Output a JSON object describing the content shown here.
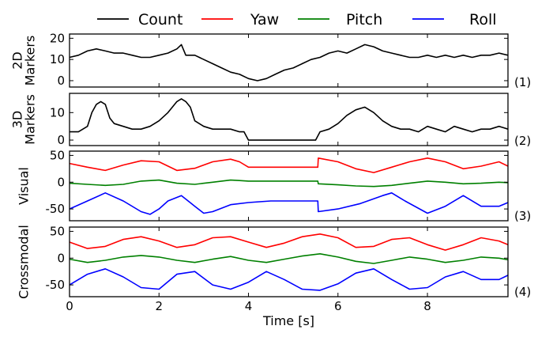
{
  "chart_data": {
    "type": "line",
    "legend": {
      "placement": "top",
      "entries": [
        {
          "label": "Count",
          "color": "#000000"
        },
        {
          "label": "Yaw",
          "color": "#ff0000"
        },
        {
          "label": "Pitch",
          "color": "#008000"
        },
        {
          "label": "Roll",
          "color": "#0000ff"
        }
      ]
    },
    "xlabel": "Time [s]",
    "xlim": [
      0,
      9.8
    ],
    "xticks": [
      0,
      2,
      4,
      6,
      8
    ],
    "grid": false,
    "panels": [
      {
        "id": "(1)",
        "ylabel": [
          "2D",
          "Markers"
        ],
        "ylim": [
          -3,
          22
        ],
        "yticks": [
          0,
          10,
          20
        ],
        "series": [
          {
            "name": "Count",
            "color": "#000000",
            "x": [
              0,
              0.2,
              0.4,
              0.6,
              0.8,
              1.0,
              1.2,
              1.4,
              1.6,
              1.8,
              2.0,
              2.2,
              2.4,
              2.5,
              2.6,
              2.8,
              3.0,
              3.2,
              3.4,
              3.6,
              3.8,
              4.0,
              4.2,
              4.4,
              4.6,
              4.8,
              5.0,
              5.2,
              5.4,
              5.6,
              5.8,
              6.0,
              6.2,
              6.4,
              6.6,
              6.8,
              7.0,
              7.2,
              7.4,
              7.6,
              7.8,
              8.0,
              8.2,
              8.4,
              8.6,
              8.8,
              9.0,
              9.2,
              9.4,
              9.6,
              9.8
            ],
            "y": [
              11,
              12,
              14,
              15,
              14,
              13,
              13,
              12,
              11,
              11,
              12,
              13,
              15,
              17,
              12,
              12,
              10,
              8,
              6,
              4,
              3,
              1,
              0,
              1,
              3,
              5,
              6,
              8,
              10,
              11,
              13,
              14,
              13,
              15,
              17,
              16,
              14,
              13,
              12,
              11,
              11,
              12,
              11,
              12,
              11,
              12,
              11,
              12,
              12,
              13,
              12
            ]
          }
        ]
      },
      {
        "id": "(2)",
        "ylabel": [
          "3D",
          "Markers"
        ],
        "ylim": [
          -2,
          17
        ],
        "yticks": [
          0,
          10
        ],
        "series": [
          {
            "name": "Count",
            "color": "#000000",
            "x": [
              0,
              0.2,
              0.4,
              0.5,
              0.6,
              0.7,
              0.8,
              0.9,
              1.0,
              1.2,
              1.4,
              1.6,
              1.8,
              2.0,
              2.2,
              2.4,
              2.5,
              2.6,
              2.7,
              2.8,
              3.0,
              3.2,
              3.4,
              3.6,
              3.8,
              3.9,
              4.0,
              4.5,
              5.0,
              5.5,
              5.6,
              5.8,
              6.0,
              6.2,
              6.4,
              6.6,
              6.8,
              7.0,
              7.2,
              7.4,
              7.6,
              7.8,
              8.0,
              8.2,
              8.4,
              8.6,
              8.8,
              9.0,
              9.2,
              9.4,
              9.6,
              9.8
            ],
            "y": [
              3,
              3,
              5,
              10,
              13,
              14,
              13,
              8,
              6,
              5,
              4,
              4,
              5,
              7,
              10,
              14,
              15,
              14,
              12,
              7,
              5,
              4,
              4,
              4,
              3,
              3,
              0,
              0,
              0,
              0,
              3,
              4,
              6,
              9,
              11,
              12,
              10,
              7,
              5,
              4,
              4,
              3,
              5,
              4,
              3,
              5,
              4,
              3,
              4,
              4,
              5,
              4
            ]
          }
        ]
      },
      {
        "id": "(3)",
        "ylabel": [
          "Visual"
        ],
        "ylim": [
          -72,
          58
        ],
        "yticks": [
          -50,
          0,
          50
        ],
        "series": [
          {
            "name": "Yaw",
            "color": "#ff0000",
            "x": [
              0,
              0.4,
              0.8,
              1.2,
              1.6,
              2.0,
              2.4,
              2.8,
              3.2,
              3.6,
              3.8,
              4.0,
              4.5,
              5.0,
              5.55,
              5.56,
              6.0,
              6.4,
              6.8,
              7.2,
              7.6,
              8.0,
              8.4,
              8.8,
              9.2,
              9.6,
              9.8
            ],
            "y": [
              35,
              28,
              22,
              32,
              40,
              38,
              22,
              26,
              38,
              43,
              38,
              28,
              28,
              28,
              28,
              45,
              38,
              25,
              18,
              28,
              38,
              45,
              38,
              25,
              30,
              38,
              30
            ]
          },
          {
            "name": "Pitch",
            "color": "#008000",
            "x": [
              0,
              0.4,
              0.8,
              1.2,
              1.6,
              2.0,
              2.4,
              2.8,
              3.2,
              3.6,
              3.8,
              4.0,
              4.5,
              5.0,
              5.55,
              5.56,
              6.0,
              6.4,
              6.8,
              7.2,
              7.6,
              8.0,
              8.4,
              8.8,
              9.2,
              9.6,
              9.8
            ],
            "y": [
              -2,
              -4,
              -6,
              -4,
              2,
              4,
              -2,
              -4,
              0,
              4,
              3,
              2,
              2,
              2,
              2,
              -3,
              -5,
              -7,
              -8,
              -6,
              -2,
              2,
              0,
              -3,
              -2,
              0,
              -1
            ]
          },
          {
            "name": "Roll",
            "color": "#0000ff",
            "x": [
              0,
              0.4,
              0.8,
              1.2,
              1.6,
              1.8,
              2.0,
              2.2,
              2.5,
              2.8,
              3.0,
              3.2,
              3.6,
              4.0,
              4.5,
              5.0,
              5.55,
              5.56,
              6.0,
              6.5,
              7.0,
              7.2,
              7.5,
              8.0,
              8.4,
              8.8,
              9.2,
              9.6,
              9.8
            ],
            "y": [
              -50,
              -35,
              -20,
              -35,
              -55,
              -60,
              -50,
              -35,
              -25,
              -45,
              -58,
              -55,
              -42,
              -38,
              -35,
              -35,
              -35,
              -55,
              -50,
              -40,
              -25,
              -20,
              -35,
              -58,
              -45,
              -25,
              -45,
              -45,
              -38
            ]
          }
        ]
      },
      {
        "id": "(4)",
        "ylabel": [
          "Crossmodal"
        ],
        "ylim": [
          -72,
          58
        ],
        "yticks": [
          -50,
          0,
          50
        ],
        "series": [
          {
            "name": "Yaw",
            "color": "#ff0000",
            "x": [
              0,
              0.4,
              0.8,
              1.2,
              1.6,
              2.0,
              2.4,
              2.8,
              3.2,
              3.6,
              4.0,
              4.4,
              4.8,
              5.2,
              5.6,
              6.0,
              6.4,
              6.8,
              7.2,
              7.6,
              8.0,
              8.4,
              8.8,
              9.2,
              9.6,
              9.8
            ],
            "y": [
              30,
              18,
              22,
              35,
              40,
              32,
              20,
              25,
              38,
              40,
              30,
              20,
              28,
              40,
              45,
              38,
              20,
              22,
              35,
              38,
              25,
              15,
              25,
              38,
              32,
              25
            ]
          },
          {
            "name": "Pitch",
            "color": "#008000",
            "x": [
              0,
              0.4,
              0.8,
              1.2,
              1.6,
              2.0,
              2.4,
              2.8,
              3.2,
              3.6,
              4.0,
              4.4,
              4.8,
              5.2,
              5.6,
              6.0,
              6.4,
              6.8,
              7.2,
              7.6,
              8.0,
              8.4,
              8.8,
              9.2,
              9.6,
              9.8
            ],
            "y": [
              -2,
              -8,
              -4,
              2,
              5,
              2,
              -4,
              -8,
              -2,
              3,
              -4,
              -8,
              -2,
              4,
              8,
              2,
              -6,
              -10,
              -4,
              2,
              -2,
              -8,
              -4,
              2,
              0,
              -3
            ]
          },
          {
            "name": "Roll",
            "color": "#0000ff",
            "x": [
              0,
              0.4,
              0.8,
              1.2,
              1.6,
              2.0,
              2.4,
              2.8,
              3.2,
              3.6,
              4.0,
              4.4,
              4.8,
              5.2,
              5.6,
              6.0,
              6.4,
              6.8,
              7.2,
              7.6,
              8.0,
              8.4,
              8.8,
              9.2,
              9.6,
              9.8
            ],
            "y": [
              -50,
              -30,
              -20,
              -35,
              -55,
              -58,
              -30,
              -25,
              -50,
              -58,
              -45,
              -25,
              -40,
              -58,
              -60,
              -48,
              -28,
              -20,
              -40,
              -58,
              -55,
              -35,
              -25,
              -40,
              -40,
              -32
            ]
          }
        ]
      }
    ]
  }
}
